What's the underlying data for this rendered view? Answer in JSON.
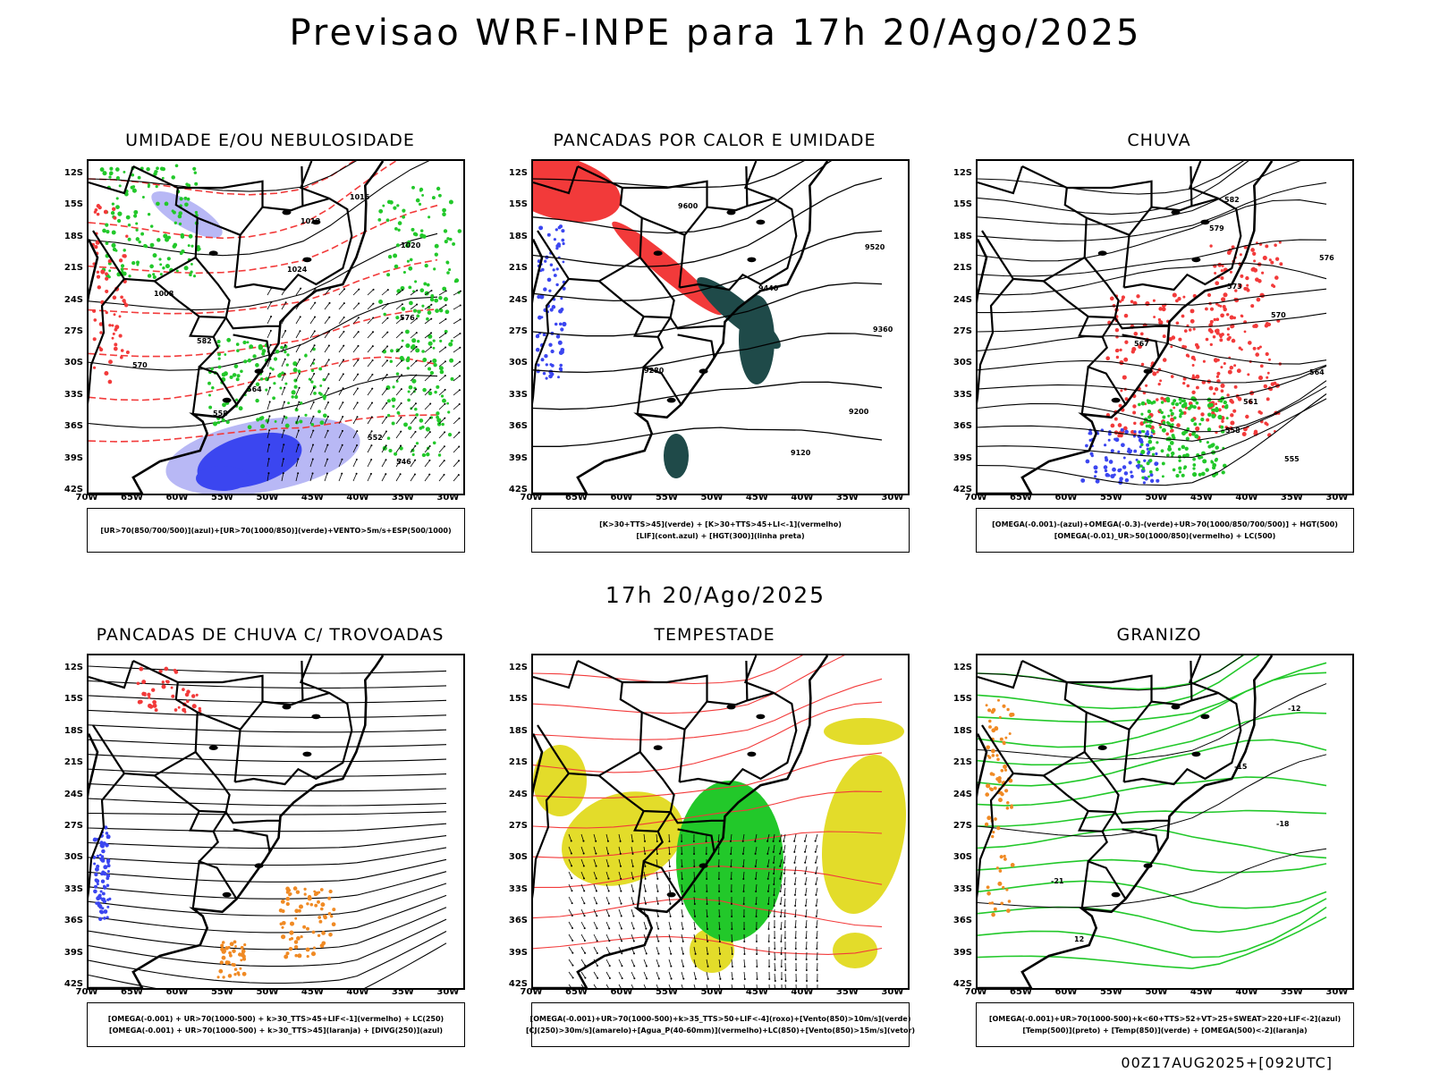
{
  "main_title": "Previsao WRF-INPE  para 17h 20/Ago/2025",
  "mid_time": "17h 20/Ago/2025",
  "footer": "00Z17AUG2025+[092UTC]",
  "lat_ticks": [
    "12S",
    "15S",
    "18S",
    "21S",
    "24S",
    "27S",
    "30S",
    "33S",
    "36S",
    "39S",
    "42S"
  ],
  "lon_ticks": [
    "70W",
    "65W",
    "60W",
    "55W",
    "50W",
    "45W",
    "40W",
    "35W",
    "30W"
  ],
  "colors": {
    "blue": "#3b46f0",
    "light_blue": "#b8b8f5",
    "green": "#22c82a",
    "red": "#f23a3a",
    "dark_teal": "#1f4a49",
    "yellow": "#e3dc2a",
    "orange": "#f08a24",
    "black": "#000000"
  },
  "panels": [
    {
      "title": "UMIDADE E/OU NEBULOSIDADE",
      "legend": [
        "[UR>70(850/700/500)](azul)+[UR>70(1000/850)](verde)+VENTO>5m/s+ESP(500/1000)"
      ],
      "labels": [
        "1016",
        "1012",
        "1020",
        "1024",
        "1008",
        "576",
        "582",
        "570",
        "564",
        "558",
        "552",
        "546"
      ]
    },
    {
      "title": "PANCADAS POR CALOR E UMIDADE",
      "legend": [
        "[K>30+TTS>45](verde) + [K>30+TTS>45+LI<-1](vermelho)",
        "[LIF](cont.azul) + [HGT(300)](linha preta)"
      ],
      "labels": [
        "9600",
        "9520",
        "9440",
        "9360",
        "9280",
        "9200",
        "9120"
      ]
    },
    {
      "title": "CHUVA",
      "legend": [
        "[OMEGA(-0.001)-(azul)+OMEGA(-0.3)-(verde)+UR>70(1000/850/700/500)] + HGT(500)",
        "[OMEGA(-0.01)_UR>50(1000/850)(vermelho) + LC(500)"
      ],
      "labels": [
        "582",
        "579",
        "576",
        "573",
        "570",
        "567",
        "564",
        "561",
        "558",
        "555"
      ]
    },
    {
      "title": "PANCADAS DE CHUVA C/ TROVOADAS",
      "legend": [
        "[OMEGA(-0.001) + UR>70(1000-500) + k>30_TTS>45+LIF<-1](vermelho) + LC(250)",
        "[OMEGA(-0.001) + UR>70(1000-500) + k>30_TTS>45](laranja) + [DIVG(250)](azul)"
      ],
      "labels": []
    },
    {
      "title": "TEMPESTADE",
      "legend": [
        "[OMEGA(-0.001)+UR>70(1000-500)+k>35_TTS>50+LIF<-4](roxo)+[Vento(850)>10m/s](verde)",
        "[CJ(250)>30m/s](amarelo)+[Agua_P(40-60mm)](vermelho)+LC(850)+[Vento(850)>15m/s](vetor)"
      ],
      "labels": []
    },
    {
      "title": "GRANIZO",
      "legend": [
        "[OMEGA(-0.001)+UR>70(1000-500)+k<60+TTS>52+VT>25+SWEAT>220+LIF<-2](azul)",
        "[Temp(500)](preto) + [Temp(850)](verde) + [OMEGA(500)<-2](laranja)"
      ],
      "labels": [
        "-12",
        "-15",
        "-18",
        "-21",
        "12"
      ]
    }
  ]
}
